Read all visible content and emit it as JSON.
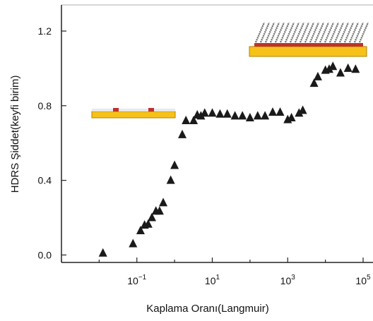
{
  "chart_data": {
    "type": "scatter",
    "title": "",
    "xlabel": "Kaplama Oranı(Langmuir)",
    "ylabel": "HDRS Şiddet(keyfi birim)",
    "x_scale": "log",
    "xlim": [
      0.001,
      100000
    ],
    "ylim": [
      -0.04,
      1.34
    ],
    "x_ticks": [
      {
        "value": 0.1,
        "base": "10",
        "exp": "−1"
      },
      {
        "value": 10,
        "base": "10",
        "exp": "1"
      },
      {
        "value": 1000,
        "base": "10",
        "exp": "3"
      },
      {
        "value": 100000,
        "base": "10",
        "exp": "5"
      }
    ],
    "y_ticks": [
      {
        "value": 0.0,
        "label": "0.0"
      },
      {
        "value": 0.4,
        "label": "0.4"
      },
      {
        "value": 0.8,
        "label": "0.8"
      },
      {
        "value": 1.2,
        "label": "1.2"
      }
    ],
    "grid": false,
    "marker": "triangle",
    "marker_color": "#1a1a1a",
    "points": [
      {
        "x": 0.0126,
        "y": 0.01
      },
      {
        "x": 0.079,
        "y": 0.06
      },
      {
        "x": 0.125,
        "y": 0.13
      },
      {
        "x": 0.16,
        "y": 0.16
      },
      {
        "x": 0.2,
        "y": 0.165
      },
      {
        "x": 0.25,
        "y": 0.2
      },
      {
        "x": 0.32,
        "y": 0.235
      },
      {
        "x": 0.4,
        "y": 0.235
      },
      {
        "x": 0.5,
        "y": 0.28
      },
      {
        "x": 0.79,
        "y": 0.4
      },
      {
        "x": 1.0,
        "y": 0.48
      },
      {
        "x": 1.6,
        "y": 0.645
      },
      {
        "x": 2.0,
        "y": 0.72
      },
      {
        "x": 3.2,
        "y": 0.72
      },
      {
        "x": 4.0,
        "y": 0.75
      },
      {
        "x": 5.0,
        "y": 0.745
      },
      {
        "x": 6.3,
        "y": 0.76
      },
      {
        "x": 10,
        "y": 0.76
      },
      {
        "x": 16,
        "y": 0.755
      },
      {
        "x": 25,
        "y": 0.755
      },
      {
        "x": 40,
        "y": 0.745
      },
      {
        "x": 63,
        "y": 0.745
      },
      {
        "x": 100,
        "y": 0.735
      },
      {
        "x": 160,
        "y": 0.745
      },
      {
        "x": 250,
        "y": 0.745
      },
      {
        "x": 400,
        "y": 0.765
      },
      {
        "x": 630,
        "y": 0.765
      },
      {
        "x": 1000,
        "y": 0.725
      },
      {
        "x": 1260,
        "y": 0.735
      },
      {
        "x": 2000,
        "y": 0.76
      },
      {
        "x": 2510,
        "y": 0.775
      },
      {
        "x": 5010,
        "y": 0.92
      },
      {
        "x": 6310,
        "y": 0.955
      },
      {
        "x": 10000,
        "y": 0.99
      },
      {
        "x": 12600,
        "y": 0.995
      },
      {
        "x": 15800,
        "y": 1.01
      },
      {
        "x": 25100,
        "y": 0.975
      },
      {
        "x": 39800,
        "y": 1.0
      },
      {
        "x": 63100,
        "y": 0.995
      }
    ],
    "annotations": [
      {
        "type": "inset-sparse-layer",
        "near_x": 1,
        "near_y": 0.75
      },
      {
        "type": "inset-dense-layer",
        "near_x": 10000,
        "near_y": 1.1
      }
    ]
  }
}
